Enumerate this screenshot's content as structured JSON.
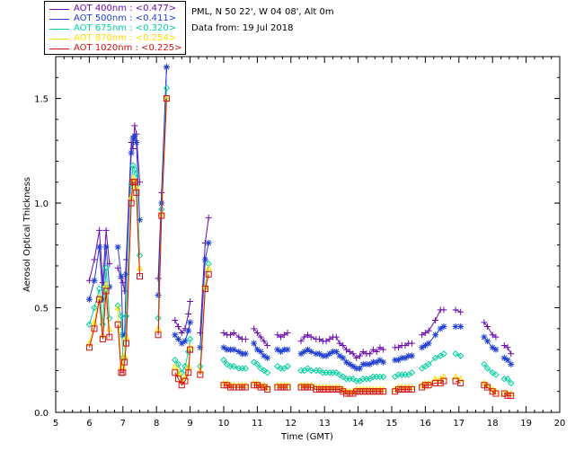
{
  "header": {
    "site": "PML, N 50 22', W 04 08', Alt 0m",
    "date": "Data from: 19 Jul 2018"
  },
  "chart_data": {
    "type": "line",
    "title": "",
    "xlabel": "Time (GMT)",
    "ylabel": "Aerosol Optical Thickness",
    "xlim": [
      5,
      20
    ],
    "ylim": [
      0,
      1.7
    ],
    "xticks": [
      5,
      6,
      7,
      8,
      9,
      10,
      11,
      12,
      13,
      14,
      15,
      16,
      17,
      18,
      19,
      20
    ],
    "yticks": [
      0.0,
      0.5,
      1.0,
      1.5
    ],
    "ytick_labels": [
      "0.0",
      "0.5",
      "1.0",
      "1.5"
    ],
    "legend_position": "top-left",
    "grid": false,
    "x": [
      6.0,
      6.15,
      6.3,
      6.4,
      6.5,
      6.6,
      6.85,
      6.95,
      7.0,
      7.05,
      7.1,
      7.25,
      7.3,
      7.35,
      7.4,
      7.5,
      7.6,
      8.05,
      8.15,
      8.3,
      8.55,
      8.65,
      8.75,
      8.85,
      8.95,
      9.0,
      9.3,
      9.45,
      9.55,
      10.0,
      10.1,
      10.2,
      10.3,
      10.45,
      10.55,
      10.65,
      10.9,
      11.0,
      11.1,
      11.2,
      11.3,
      11.6,
      11.7,
      11.8,
      11.9,
      12.3,
      12.4,
      12.5,
      12.6,
      12.75,
      12.85,
      12.95,
      13.05,
      13.15,
      13.25,
      13.35,
      13.45,
      13.55,
      13.65,
      13.75,
      13.85,
      13.95,
      14.05,
      14.15,
      14.25,
      14.35,
      14.45,
      14.55,
      14.65,
      14.75,
      15.1,
      15.2,
      15.3,
      15.4,
      15.5,
      15.6,
      15.9,
      16.0,
      16.1,
      16.3,
      16.45,
      16.55,
      16.9,
      17.05,
      17.75,
      17.85,
      18.0,
      18.1,
      18.35,
      18.45,
      18.55
    ],
    "series": [
      {
        "name": "AOT  400nm : <0.477>",
        "color": "#6a0dad",
        "marker": "plus",
        "values": [
          0.63,
          0.73,
          0.87,
          0.62,
          0.87,
          0.71,
          0.69,
          0.64,
          0.62,
          0.58,
          0.73,
          1.29,
          1.26,
          1.37,
          1.33,
          1.1,
          null,
          0.64,
          1.05,
          1.65,
          0.44,
          0.41,
          0.38,
          0.4,
          0.47,
          0.53,
          0.38,
          0.81,
          0.93,
          0.38,
          0.37,
          0.37,
          0.38,
          0.36,
          0.35,
          0.35,
          0.4,
          0.38,
          0.36,
          0.34,
          0.32,
          0.37,
          0.36,
          0.37,
          0.38,
          0.34,
          0.36,
          0.37,
          0.36,
          0.35,
          0.35,
          0.34,
          0.34,
          0.35,
          0.36,
          0.36,
          0.33,
          0.32,
          0.3,
          0.29,
          0.28,
          0.26,
          0.27,
          0.29,
          0.28,
          0.28,
          0.3,
          0.29,
          0.31,
          0.3,
          0.31,
          0.31,
          0.32,
          0.32,
          0.33,
          0.33,
          0.37,
          0.38,
          0.39,
          0.44,
          0.49,
          0.49,
          0.49,
          0.48,
          0.43,
          0.41,
          0.37,
          0.36,
          0.32,
          0.31,
          0.28
        ]
      },
      {
        "name": "AOT  500nm : <0.411>",
        "color": "#1f3fd0",
        "marker": "asterisk",
        "values": [
          0.54,
          0.63,
          0.79,
          0.54,
          0.79,
          0.6,
          0.79,
          0.65,
          0.37,
          0.37,
          0.66,
          1.24,
          1.31,
          1.32,
          1.29,
          0.92,
          null,
          0.56,
          1.0,
          1.65,
          0.37,
          0.35,
          0.33,
          0.34,
          0.39,
          0.43,
          0.31,
          0.73,
          0.81,
          0.31,
          0.3,
          0.3,
          0.3,
          0.29,
          0.28,
          0.28,
          0.33,
          0.3,
          0.29,
          0.27,
          0.26,
          0.3,
          0.29,
          0.3,
          0.3,
          0.28,
          0.29,
          0.3,
          0.29,
          0.28,
          0.28,
          0.27,
          0.27,
          0.28,
          0.29,
          0.29,
          0.27,
          0.26,
          0.24,
          0.23,
          0.22,
          0.21,
          0.21,
          0.23,
          0.23,
          0.23,
          0.24,
          0.24,
          0.25,
          0.24,
          0.25,
          0.25,
          0.26,
          0.26,
          0.27,
          0.27,
          0.31,
          0.32,
          0.33,
          0.37,
          0.4,
          0.41,
          0.41,
          0.41,
          0.36,
          0.34,
          0.31,
          0.3,
          0.26,
          0.25,
          0.23
        ]
      },
      {
        "name": "AOT  675nm : <0.320>",
        "color": "#00d0a0",
        "marker": "diamond",
        "values": [
          0.42,
          0.5,
          0.59,
          0.42,
          0.69,
          0.45,
          0.51,
          0.46,
          0.26,
          0.26,
          0.46,
          1.09,
          1.18,
          1.16,
          1.14,
          0.75,
          null,
          0.45,
          0.97,
          1.55,
          0.25,
          0.23,
          0.19,
          0.22,
          0.29,
          0.35,
          0.22,
          0.6,
          0.71,
          0.25,
          0.23,
          0.22,
          0.22,
          0.21,
          0.21,
          0.21,
          0.24,
          0.23,
          0.21,
          0.2,
          0.19,
          0.22,
          0.21,
          0.21,
          0.22,
          0.2,
          0.2,
          0.21,
          0.2,
          0.2,
          0.2,
          0.19,
          0.19,
          0.19,
          0.19,
          0.19,
          0.18,
          0.17,
          0.16,
          0.16,
          0.16,
          0.15,
          0.15,
          0.16,
          0.16,
          0.16,
          0.17,
          0.17,
          0.17,
          0.17,
          0.17,
          0.18,
          0.18,
          0.18,
          0.18,
          0.19,
          0.21,
          0.22,
          0.23,
          0.26,
          0.27,
          0.28,
          0.28,
          0.27,
          0.23,
          0.21,
          0.19,
          0.18,
          0.16,
          0.16,
          0.14
        ]
      },
      {
        "name": "AOT  870nm : <0.254>",
        "color": "#ffe000",
        "marker": "triangle",
        "values": [
          0.33,
          0.43,
          0.55,
          0.37,
          0.61,
          0.4,
          0.5,
          0.22,
          0.22,
          0.27,
          0.36,
          1.03,
          1.12,
          1.11,
          1.08,
          0.69,
          null,
          0.4,
          0.95,
          1.5,
          0.22,
          0.19,
          0.15,
          0.17,
          0.22,
          0.31,
          0.2,
          0.6,
          0.69,
          0.14,
          0.14,
          0.13,
          0.13,
          0.13,
          0.13,
          0.13,
          0.14,
          0.14,
          0.13,
          0.13,
          0.12,
          0.13,
          0.13,
          0.13,
          0.13,
          0.13,
          0.13,
          0.13,
          0.13,
          0.12,
          0.12,
          0.12,
          0.12,
          0.12,
          0.12,
          0.12,
          0.12,
          0.11,
          0.1,
          0.1,
          0.1,
          0.11,
          0.11,
          0.11,
          0.11,
          0.11,
          0.11,
          0.11,
          0.11,
          0.11,
          0.11,
          0.12,
          0.12,
          0.12,
          0.12,
          0.12,
          0.13,
          0.14,
          0.14,
          0.16,
          0.16,
          0.17,
          0.17,
          0.16,
          0.14,
          0.13,
          0.11,
          0.1,
          0.09,
          0.09,
          0.09
        ]
      },
      {
        "name": "AOT 1020nm : <0.225>",
        "color": "#d01010",
        "marker": "square",
        "values": [
          0.31,
          0.4,
          0.54,
          0.35,
          0.58,
          0.36,
          0.42,
          0.19,
          0.19,
          0.24,
          0.33,
          1.0,
          1.1,
          1.1,
          1.05,
          0.65,
          null,
          0.37,
          0.94,
          1.5,
          0.19,
          0.16,
          0.13,
          0.15,
          0.19,
          0.3,
          0.18,
          0.59,
          0.66,
          0.13,
          0.13,
          0.12,
          0.12,
          0.12,
          0.12,
          0.12,
          0.13,
          0.13,
          0.12,
          0.12,
          0.11,
          0.12,
          0.12,
          0.12,
          0.12,
          0.12,
          0.12,
          0.12,
          0.12,
          0.11,
          0.11,
          0.11,
          0.11,
          0.11,
          0.11,
          0.11,
          0.11,
          0.1,
          0.09,
          0.09,
          0.09,
          0.1,
          0.1,
          0.1,
          0.1,
          0.1,
          0.1,
          0.1,
          0.1,
          0.1,
          0.1,
          0.11,
          0.11,
          0.11,
          0.11,
          0.11,
          0.12,
          0.13,
          0.13,
          0.14,
          0.14,
          0.15,
          0.15,
          0.14,
          0.13,
          0.12,
          0.1,
          0.09,
          0.09,
          0.08,
          0.08
        ]
      }
    ]
  }
}
